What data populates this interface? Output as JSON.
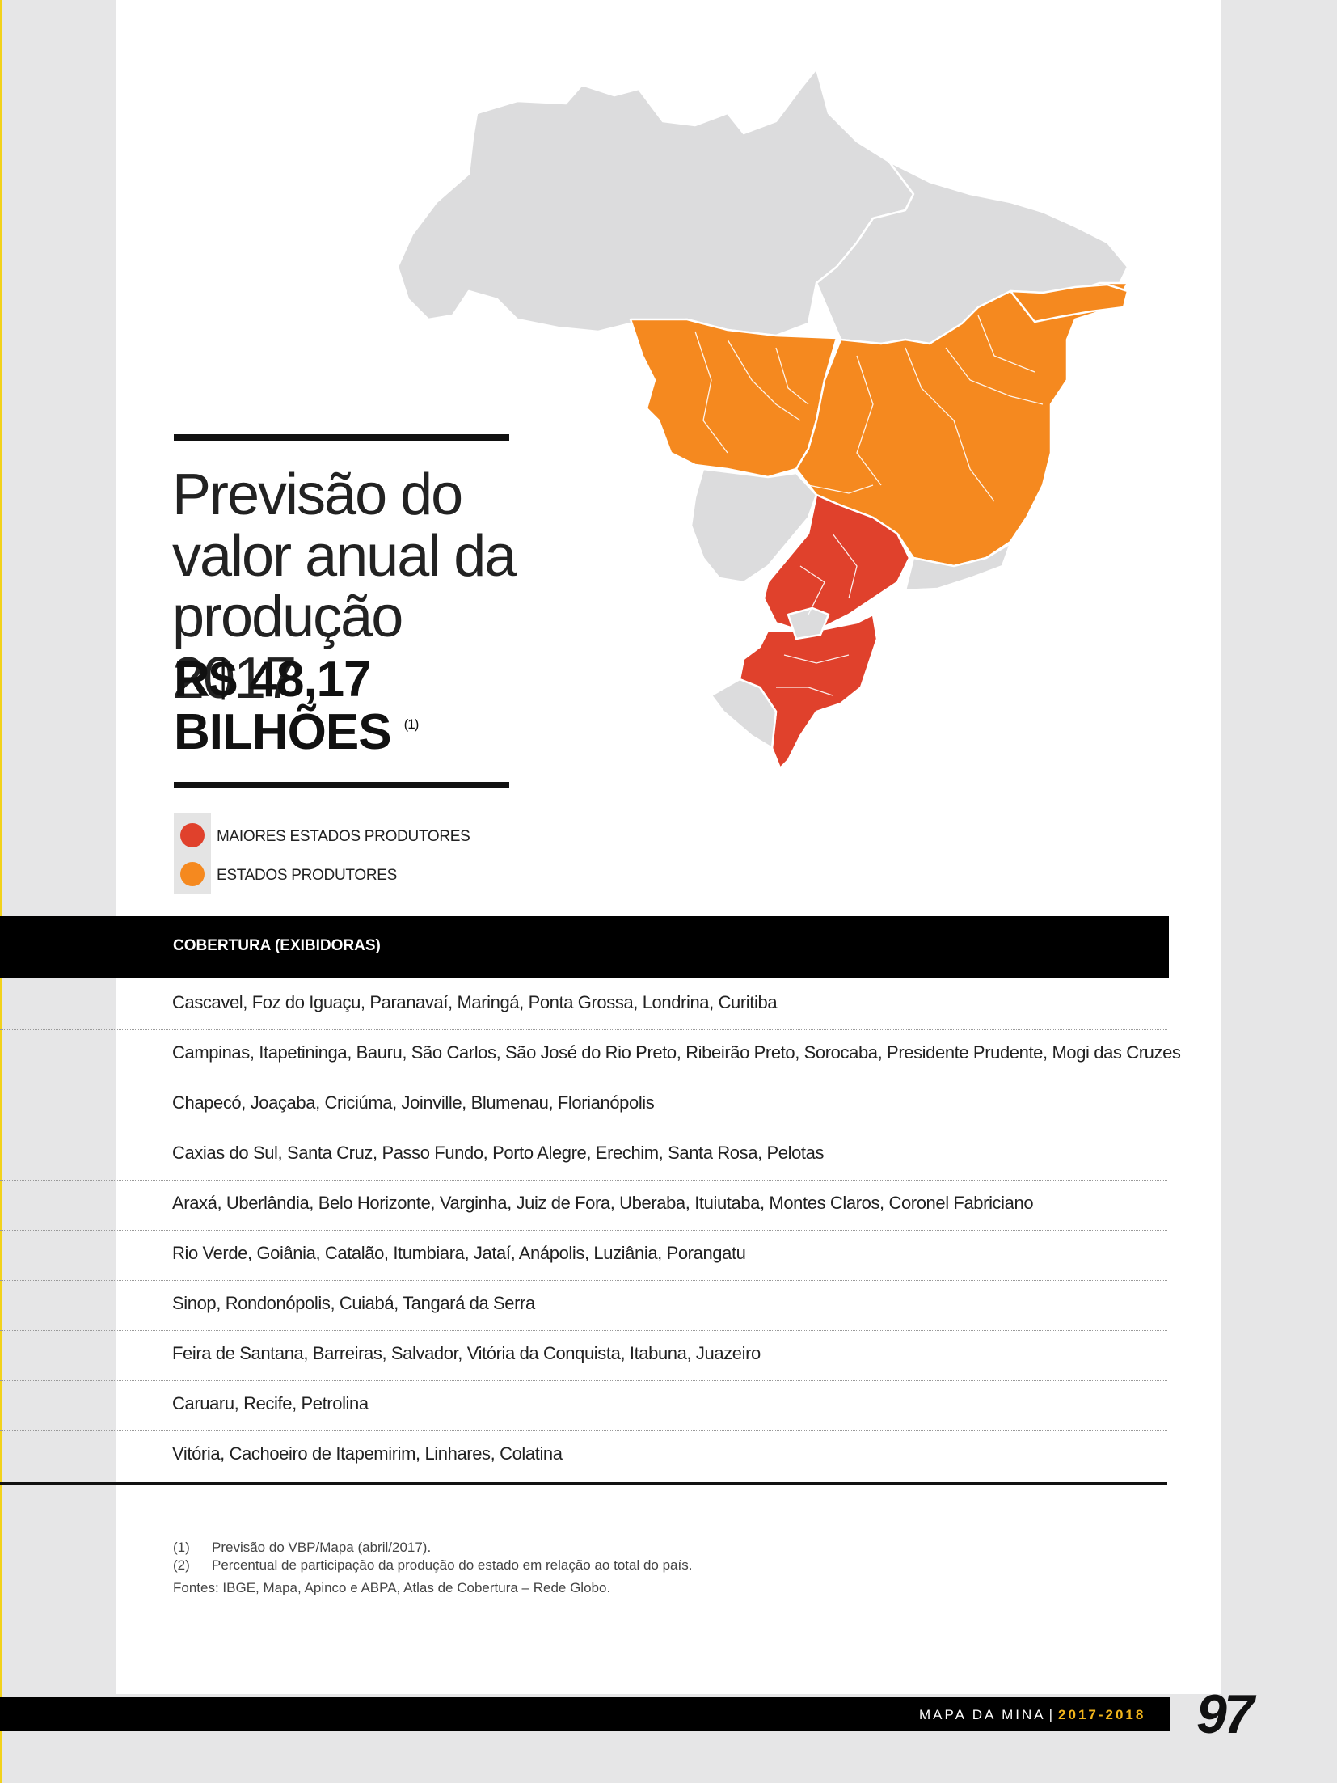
{
  "map": {
    "colors": {
      "major": "#e0412c",
      "producer": "#f5891f",
      "other": "#dcdcdd",
      "border": "#ffffff"
    }
  },
  "headline": {
    "title": "Previsão do valor anual da produção 2017",
    "value_line1": "R$ 48,17",
    "value_line2": "BILHÕES",
    "footnote_ref": "(1)"
  },
  "legend": [
    {
      "label": "MAIORES ESTADOS PRODUTORES",
      "color": "#e0412c"
    },
    {
      "label": "ESTADOS PRODUTORES",
      "color": "#f5891f"
    }
  ],
  "table": {
    "header": "COBERTURA (EXIBIDORAS)",
    "rows": [
      "Cascavel, Foz do Iguaçu, Paranavaí, Maringá, Ponta Grossa, Londrina, Curitiba",
      "Campinas, Itapetininga, Bauru, São Carlos, São José do Rio Preto, Ribeirão Preto, Sorocaba, Presidente Prudente, Mogi das Cruzes",
      "Chapecó, Joaçaba, Criciúma, Joinville, Blumenau, Florianópolis",
      "Caxias do Sul, Santa Cruz, Passo Fundo, Porto Alegre, Erechim, Santa Rosa, Pelotas",
      "Araxá, Uberlândia, Belo Horizonte, Varginha, Juiz de Fora, Uberaba, Ituiutaba, Montes Claros, Coronel Fabriciano",
      "Rio Verde, Goiânia, Catalão, Itumbiara, Jataí, Anápolis, Luziânia, Porangatu",
      "Sinop, Rondonópolis, Cuiabá, Tangará da Serra",
      "Feira de Santana, Barreiras, Salvador, Vitória da Conquista, Itabuna, Juazeiro",
      "Caruaru, Recife, Petrolina",
      "Vitória, Cachoeiro de Itapemirim, Linhares, Colatina"
    ]
  },
  "footnotes": {
    "n1_num": "(1)",
    "n1_text": "Previsão do VBP/Mapa (abril/2017).",
    "n2_num": "(2)",
    "n2_text": "Percentual de participação da produção do estado em relação ao total do país.",
    "sources": "Fontes: IBGE, Mapa, Apinco e ABPA, Atlas de Cobertura – Rede Globo."
  },
  "footer": {
    "publication": "MAPA DA MINA",
    "separator": "|",
    "year": "2017-2018",
    "page_number": "97"
  }
}
